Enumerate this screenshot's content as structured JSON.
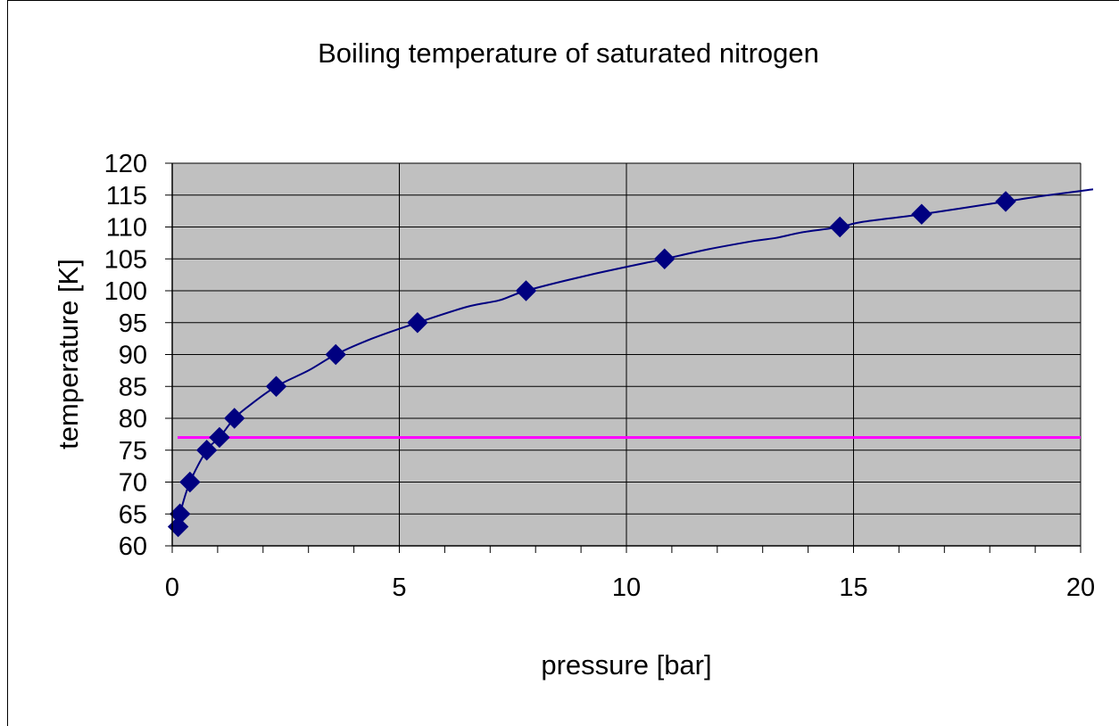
{
  "chart_data": {
    "type": "scatter",
    "title": "Boiling temperature of saturated nitrogen",
    "xlabel": "pressure [bar]",
    "ylabel": "temperature [K]",
    "xlim": [
      0,
      20
    ],
    "ylim": [
      60,
      120
    ],
    "x_ticks": [
      0,
      5,
      10,
      15,
      20
    ],
    "x_minor_step": 1,
    "y_ticks": [
      60,
      65,
      70,
      75,
      80,
      85,
      90,
      95,
      100,
      105,
      110,
      115,
      120
    ],
    "grid": true,
    "legend": "none",
    "plot_background": "#c0c0c0",
    "series": [
      {
        "marker": "diamond",
        "color": "#000080",
        "x": [
          0.13,
          0.17,
          0.39,
          0.76,
          1.04,
          1.37,
          2.29,
          3.6,
          5.4,
          7.79,
          10.84,
          14.7,
          16.5,
          18.35
        ],
        "y": [
          63,
          65,
          70,
          75,
          77,
          80,
          85,
          90,
          95,
          100,
          105,
          110,
          112,
          114
        ]
      }
    ],
    "curve": {
      "color": "#000080",
      "x": [
        0.13,
        0.17,
        0.39,
        0.76,
        1.04,
        1.37,
        1.7,
        2.29,
        3.0,
        3.6,
        4.4,
        5.4,
        6.5,
        7.2,
        7.79,
        9.2,
        10.84,
        11.8,
        12.8,
        13.3,
        13.9,
        14.7,
        15.2,
        16.5,
        18.35,
        19.3,
        20.5
      ],
      "y": [
        63,
        65,
        70,
        75,
        77,
        80,
        82,
        85,
        87.5,
        90,
        92.5,
        95,
        97.5,
        98.5,
        100,
        102.5,
        105,
        106.5,
        107.8,
        108.3,
        109.2,
        110,
        110.8,
        112,
        114,
        115,
        115.9
      ]
    },
    "reference_line": {
      "y": 77,
      "color": "#ff00ff"
    }
  }
}
